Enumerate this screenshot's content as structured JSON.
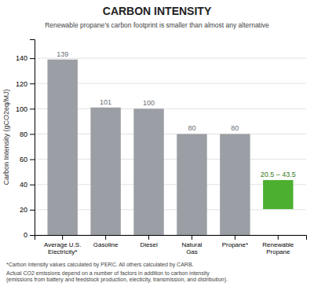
{
  "chart_data": {
    "type": "bar",
    "title": "CARBON INTENSITY",
    "subtitle": "Renewable propane’s carbon footprint is smaller than almost any alternative",
    "categories": [
      "Average U.S.\nElectricity*",
      "Gasoline",
      "Diesel",
      "Natural\nGas",
      "Propane*",
      "Renewable\nPropane"
    ],
    "values": [
      139,
      101,
      100,
      80,
      80,
      43.5
    ],
    "bottoms": [
      0,
      0,
      0,
      0,
      0,
      20.5
    ],
    "value_labels": [
      "139",
      "101",
      "100",
      "80",
      "80",
      "20.5 – 43.5"
    ],
    "data_labels": true,
    "colors": [
      "#9b9ea4",
      "#9b9ea4",
      "#9b9ea4",
      "#9b9ea4",
      "#9b9ea4",
      "#4caf30"
    ],
    "ylabel": "Carbon Intensity (gCO2eq/MJ)",
    "ylim": [
      0,
      155
    ],
    "yticks": [
      0,
      20,
      40,
      60,
      80,
      100,
      120,
      140
    ],
    "grid": true,
    "notes": [
      "*Carbon intensity values calculated by PERC. All others calculated by CARB.",
      "Actual CO2 emissions depend on a number of factors in addition to carbon intensity\n(emissions from battery and feedstock production, electicity, transmission, and distribution)."
    ]
  }
}
